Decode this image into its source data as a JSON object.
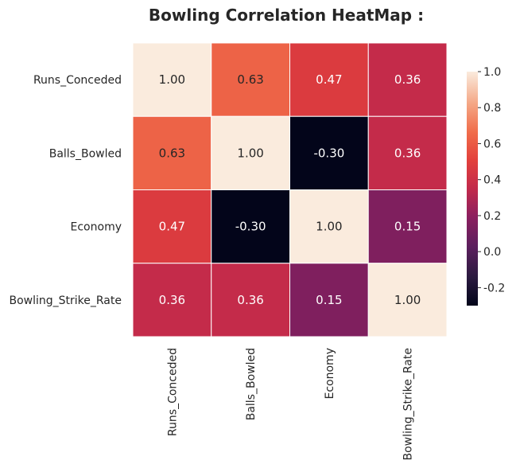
{
  "chart_data": {
    "type": "heatmap",
    "title": "Bowling Correlation HeatMap :",
    "rows": [
      "Runs_Conceded",
      "Balls_Bowled",
      "Economy",
      "Bowling_Strike_Rate"
    ],
    "columns": [
      "Runs_Conceded",
      "Balls_Bowled",
      "Economy",
      "Bowling_Strike_Rate"
    ],
    "values": [
      [
        1.0,
        0.63,
        0.47,
        0.36
      ],
      [
        0.63,
        1.0,
        -0.3,
        0.36
      ],
      [
        0.47,
        -0.3,
        1.0,
        0.15
      ],
      [
        0.36,
        0.36,
        0.15,
        1.0
      ]
    ],
    "labels": [
      [
        "1.00",
        "0.63",
        "0.47",
        "0.36"
      ],
      [
        "0.63",
        "1.00",
        "-0.30",
        "0.36"
      ],
      [
        "0.47",
        "-0.30",
        "1.00",
        "0.15"
      ],
      [
        "0.36",
        "0.36",
        "0.15",
        "1.00"
      ]
    ],
    "colorbar": {
      "range": [
        -0.3,
        1.0
      ],
      "ticks": [
        "-0.2",
        "0.0",
        "0.2",
        "0.4",
        "0.6",
        "0.8",
        "1.0"
      ],
      "tick_values": [
        -0.2,
        0.0,
        0.2,
        0.4,
        0.6,
        0.8,
        1.0
      ]
    },
    "colormap": "rocket",
    "annotated": true
  }
}
